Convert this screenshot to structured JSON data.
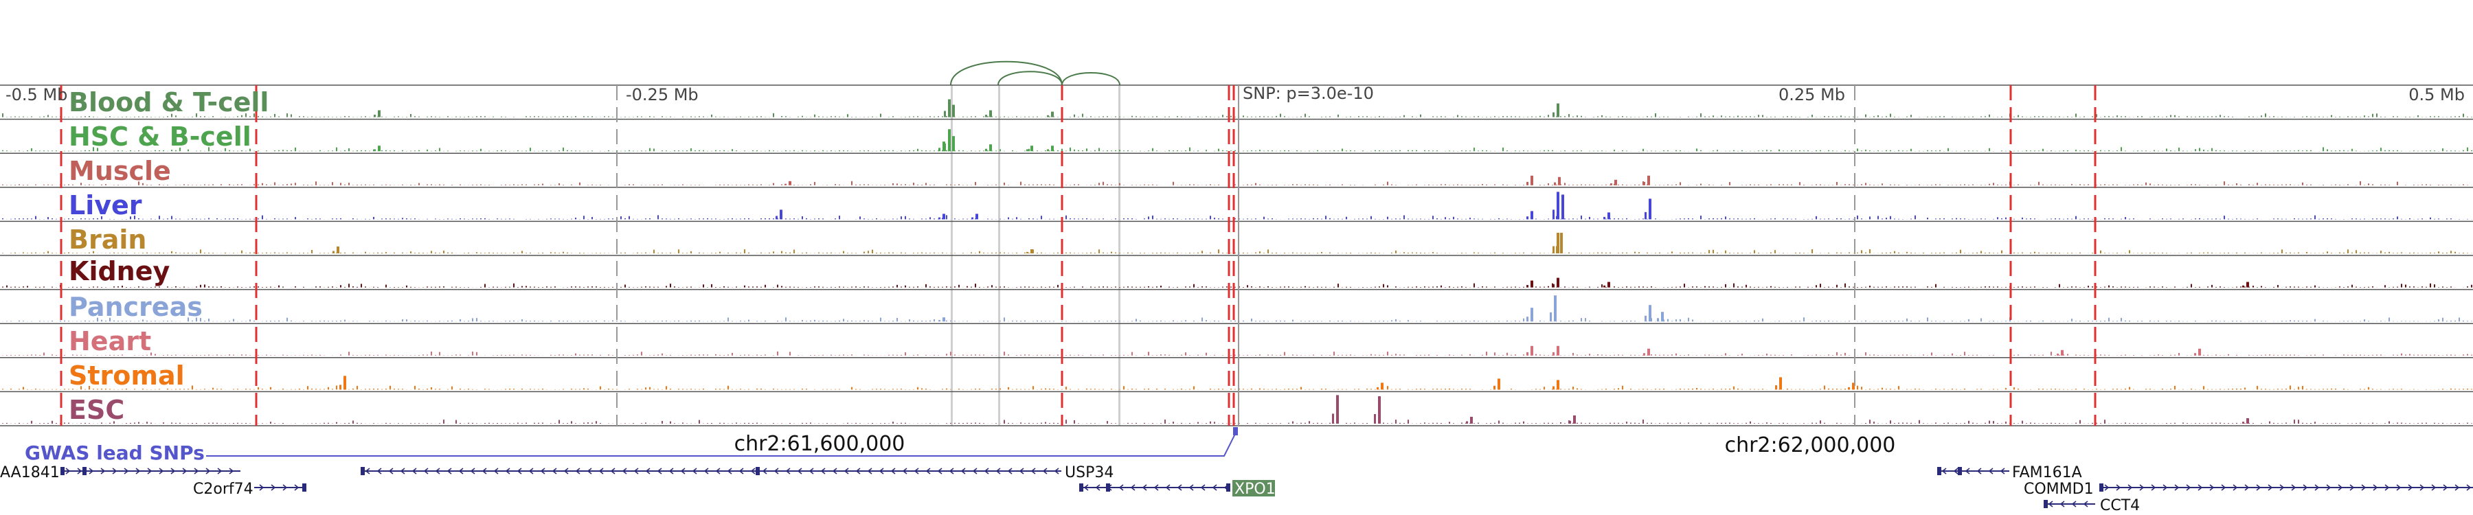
{
  "ruler": {
    "labels": [
      "-0.5 Mb",
      "-0.25 Mb",
      "0.25 Mb",
      "0.5 Mb"
    ],
    "snp_label": "SNP: p=3.0e-10"
  },
  "tracks": [
    {
      "name": "Blood & T-cell",
      "color": "#5a8f5a"
    },
    {
      "name": "HSC & B-cell",
      "color": "#4ea34e"
    },
    {
      "name": "Muscle",
      "color": "#c0605a"
    },
    {
      "name": "Liver",
      "color": "#4646d8"
    },
    {
      "name": "Brain",
      "color": "#b8862c"
    },
    {
      "name": "Kidney",
      "color": "#6a0f12"
    },
    {
      "name": "Pancreas",
      "color": "#8aa4d8"
    },
    {
      "name": "Heart",
      "color": "#d4707a"
    },
    {
      "name": "Stromal",
      "color": "#f07814"
    },
    {
      "name": "ESC",
      "color": "#9a4a6a"
    }
  ],
  "coordinates": {
    "left": "chr2:61,600,000",
    "right": "chr2:62,000,000"
  },
  "gwas": {
    "label": "GWAS lead SNPs",
    "color": "#5555cc"
  },
  "genes": [
    {
      "name": "AA1841"
    },
    {
      "name": "C2orf74"
    },
    {
      "name": "USP34"
    },
    {
      "name": "XPO1",
      "highlighted": true
    },
    {
      "name": "FAM161A"
    },
    {
      "name": "COMMD1"
    },
    {
      "name": "CCT4"
    }
  ],
  "colors": {
    "marker_red": "#e03030",
    "divider_gray": "#999999",
    "highlight_band": "#cfcfcf",
    "loop_green": "#4a7a4a",
    "gene_navy": "#2a2a7a",
    "xpo1_bg": "#5f8f5f"
  }
}
